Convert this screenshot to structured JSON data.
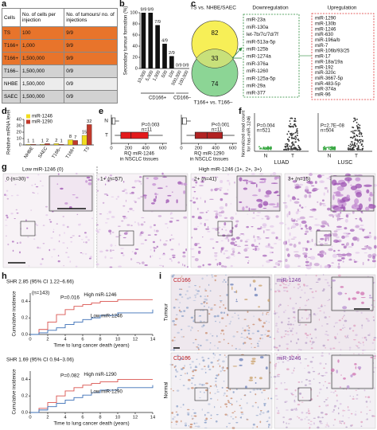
{
  "panel_labels": [
    "a",
    "b",
    "c",
    "d",
    "e",
    "f",
    "g",
    "h",
    "i"
  ],
  "table": {
    "header": [
      "Cells",
      "No. of cells per injection",
      "No. of tumours/ no. of injections"
    ],
    "rows": [
      [
        "TS",
        "100",
        "9/9"
      ],
      [
        "T166+",
        "1,000",
        "9/9"
      ],
      [
        "T166+",
        "1,500,000",
        "9/9"
      ],
      [
        "T166–",
        "1,500,000",
        "0/9"
      ],
      [
        "NHBE",
        "1,500,000",
        "0/9"
      ],
      [
        "SAEC",
        "1,500,000",
        "0/9"
      ]
    ]
  },
  "venn": {
    "title": "TS vs. NHBE/SAEC",
    "bottom_label": "T166+ vs. T166–",
    "counts": [
      82,
      33,
      74
    ]
  },
  "mirna_lists": {
    "down_title": "Downregulation",
    "up_title": "Upregulation",
    "down": [
      "miR-23a",
      "miR-130a",
      "let-7b/7c/7d/7f",
      "miR-513a-5p",
      "miR-125b",
      "miR-1274a",
      "miR-376a",
      "miR-1260",
      "miR-125a-5p",
      "miR-29a",
      "miR-377"
    ],
    "up": [
      "miR-1290",
      "miR-130b",
      "miR-1246",
      "miR-630",
      "miR-196a/b",
      "miR-7",
      "miR-106b/93/25",
      "miR-17",
      "miR-18a/19a",
      "miR-192",
      "miR-320c",
      "miR-3667-5p",
      "miR-483-5p",
      "miR-374a",
      "miR-96"
    ]
  },
  "chart_data": [
    {
      "type": "bar",
      "ylabel": "Secondary tumour formation (%)",
      "categories": [
        "10,000",
        "5,000",
        "1,000",
        "500",
        "100",
        "500,000",
        "100,000"
      ],
      "values": [
        100,
        100,
        77.8,
        44.4,
        22.2,
        0,
        0
      ],
      "value_labels": [
        "9/9",
        "9/9",
        "7/9",
        "4/9",
        "2/9",
        "0/9",
        "0/9"
      ],
      "groups": [
        "CD166+",
        "CD166–"
      ],
      "color": "#111111",
      "ylim": [
        0,
        100
      ],
      "yticks": [
        0,
        20,
        40,
        60,
        80,
        100
      ]
    },
    {
      "type": "grouped_bar",
      "ylabel": "Relative miRNA level",
      "categories": [
        "NHBE",
        "SAEC",
        "T166–",
        "T166+",
        "TS"
      ],
      "series": [
        {
          "name": "miR-1246",
          "color": "#f0dc1e",
          "values": [
            1,
            1,
            2,
            8,
            15
          ]
        },
        {
          "name": "miR-1290",
          "color": "#c0392b",
          "values": [
            1,
            2,
            1,
            7,
            32
          ]
        }
      ],
      "ylim": [
        0,
        40
      ],
      "yticks": [
        0,
        10,
        20,
        30,
        40
      ],
      "legend": "top-left"
    },
    {
      "type": "boxplot",
      "xlabel": [
        "RQ miR-1246",
        "in NSCLC tissues"
      ],
      "categories": [
        "N",
        "T"
      ],
      "boxes": [
        {
          "min": 0,
          "q1": 2,
          "median": 10,
          "q3": 45,
          "max": 90
        },
        {
          "min": 40,
          "q1": 110,
          "median": 230,
          "q3": 430,
          "max": 600
        }
      ],
      "colors": [
        "#ffffff",
        "#e31a1c"
      ],
      "annotations": [
        "P=0.003",
        "n=11"
      ],
      "xlim": [
        0,
        650
      ],
      "xticks": [
        0,
        200,
        400,
        600
      ]
    },
    {
      "type": "boxplot",
      "xlabel": [
        "RQ miR-1290",
        "in NSCLC tissues"
      ],
      "boxes": [
        {
          "min": 0,
          "q1": 3,
          "median": 15,
          "q3": 60,
          "max": 110
        },
        {
          "min": 60,
          "q1": 160,
          "median": 300,
          "q3": 480,
          "max": 620
        }
      ],
      "colors": [
        "#ffffff",
        "#b22222"
      ],
      "annotations": [
        "P<0.001",
        "n=11"
      ],
      "xlim": [
        0,
        650
      ],
      "xticks": [
        0,
        200,
        400,
        600
      ]
    },
    {
      "type": "step",
      "ylabel": "Cumulative incidence",
      "xlabel": "Time to lung cancer death (years)",
      "annotations": [
        "SHR 2.85 (95% CI 1.22–6.66)",
        "(n=143)",
        "P=0.016"
      ],
      "series": [
        {
          "name": "High miR-1246",
          "color": "#d9534f",
          "x": [
            0,
            1,
            2,
            3,
            4,
            5,
            6,
            7,
            8,
            10,
            14
          ],
          "values": [
            0,
            0.06,
            0.15,
            0.24,
            0.3,
            0.34,
            0.36,
            0.38,
            0.4,
            0.42,
            0.42
          ]
        },
        {
          "name": "Low miR-1246",
          "color": "#3b6fb6",
          "x": [
            0,
            1,
            2,
            3,
            4,
            5,
            6,
            7,
            8,
            10,
            14
          ],
          "values": [
            0,
            0.02,
            0.05,
            0.08,
            0.12,
            0.15,
            0.18,
            0.2,
            0.23,
            0.26,
            0.3
          ]
        }
      ],
      "xlim": [
        0,
        14
      ],
      "xticks": [
        0,
        2,
        4,
        6,
        8,
        10,
        12,
        14
      ],
      "ylim": [
        0,
        0.5
      ],
      "yticks": [
        {
          "value": 0,
          "label": "0.0"
        },
        0.2,
        0.4
      ]
    },
    {
      "type": "step",
      "ylabel": "Cumulative incidence",
      "xlabel": "Time to lung cancer death (years)",
      "annotations": [
        "SHR 1.69 (95% CI 0.94–3.06)",
        "P=0.082"
      ],
      "series": [
        {
          "name": "High miR-1290",
          "color": "#d9534f",
          "x": [
            0,
            1,
            2,
            3,
            4,
            5,
            6,
            7,
            8,
            10,
            14
          ],
          "values": [
            0,
            0.05,
            0.12,
            0.2,
            0.26,
            0.3,
            0.33,
            0.35,
            0.37,
            0.4,
            0.4
          ]
        },
        {
          "name": "Low miR-1290",
          "color": "#3b6fb6",
          "x": [
            0,
            1,
            2,
            3,
            4,
            5,
            6,
            7,
            8,
            10,
            14
          ],
          "values": [
            0,
            0.03,
            0.07,
            0.11,
            0.15,
            0.18,
            0.21,
            0.24,
            0.27,
            0.3,
            0.33
          ]
        }
      ],
      "xlim": [
        0,
        14
      ],
      "xticks": [
        0,
        2,
        4,
        6,
        8,
        10,
        12,
        14
      ],
      "ylim": [
        0,
        0.5
      ],
      "yticks": [
        {
          "value": 0,
          "label": "0.0"
        },
        0.2,
        0.4
      ]
    }
  ],
  "scatter_panels": {
    "ylabel": [
      "Normalized read count",
      "for has-miR-1246"
    ],
    "categories": [
      "N",
      "T"
    ],
    "plots": [
      {
        "name": "LUAD",
        "p": "P=0.004",
        "n": "n=521"
      },
      {
        "name": "LUSC",
        "p": "P=2.7E–08",
        "n": "n=504"
      }
    ]
  },
  "histology": {
    "low_title": "Low miR-1246 (0)",
    "high_title": "High miR-1246 (1+, 2+, 3+)",
    "tiles": [
      "0 (n=30)",
      "1+ (n=57)",
      "2+ (n=41)",
      "3+ (n=15)"
    ]
  },
  "ihc": {
    "rows": [
      "Tumour",
      "Normal"
    ],
    "stains": [
      "CD166",
      "miR-1246"
    ]
  }
}
